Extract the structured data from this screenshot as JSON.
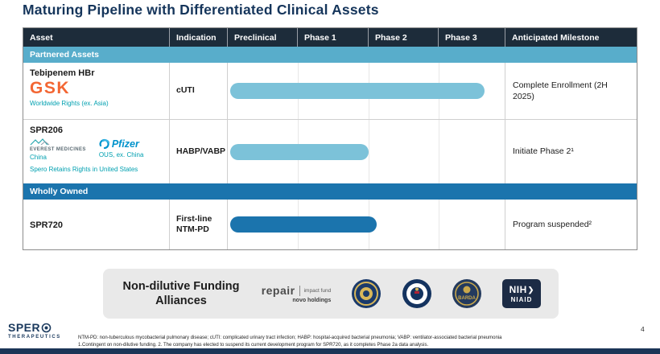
{
  "slide": {
    "title": "Maturing Pipeline with Differentiated Clinical Assets",
    "page_number": "4"
  },
  "colors": {
    "title_navy": "#15355B",
    "header_bg": "#1D2C3A",
    "partnered_band": "#58ADCB",
    "wholly_band": "#1B74AD",
    "bar_partnered": "#7CC2D9",
    "bar_wholly": "#1B74AD",
    "teal_text": "#00A0B0",
    "gsk_orange": "#F36633",
    "pfizer_blue": "#0093CC"
  },
  "table": {
    "headers": [
      "Asset",
      "Indication",
      "Preclinical",
      "Phase 1",
      "Phase 2",
      "Phase 3",
      "Anticipated Milestone"
    ],
    "sections": {
      "partnered": "Partnered Assets",
      "wholly": "Wholly Owned"
    },
    "rows": [
      {
        "asset": "Tebipenem HBr",
        "partner": "GSK",
        "rights": "Worldwide Rights (ex. Asia)",
        "indication": "cUTI",
        "bar": {
          "from": "Preclinical",
          "to": "Phase 3",
          "width_pct": 92,
          "color": "#7CC2D9"
        },
        "milestone": "Complete Enrollment (2H 2025)"
      },
      {
        "asset": "SPR206",
        "partner_1": {
          "name": "EVEREST MEDICINES",
          "territory": "China"
        },
        "partner_2": {
          "name": "Pfizer",
          "territory": "OUS, ex. China"
        },
        "rights": "Spero Retains Rights in United States",
        "indication": "HABP/VABP",
        "bar": {
          "from": "Preclinical",
          "to": "Phase 1",
          "width_pct": 50,
          "color": "#7CC2D9"
        },
        "milestone": "Initiate Phase 2¹"
      },
      {
        "asset": "SPR720",
        "indication": "First-line NTM-PD",
        "bar": {
          "from": "Preclinical",
          "to": "Phase 2",
          "width_pct": 53,
          "color": "#1B74AD"
        },
        "milestone": "Program suspended²"
      }
    ]
  },
  "funding": {
    "title": "Non-dilutive Funding Alliances",
    "repair": {
      "name": "repair",
      "tagline": "impact fund",
      "owner": "novo holdings"
    },
    "seals": [
      "US government agency seal",
      "US government agency seal",
      "BARDA seal"
    ],
    "barda": "BARDA",
    "nih": {
      "abbr": "NIH",
      "institute": "NIAID"
    }
  },
  "footer": {
    "brand": {
      "name_letters": "SPER",
      "name": "SPERO",
      "sub": "THERAPEUTICS"
    },
    "footnote_line1": "NTM-PD: non-tuberculous mycobacterial pulmonary disease; cUTI: complicated urinary tract infection; HABP: hospital-acquired bacterial pneumonia; VABP: ventilator-associated bacterial pneumonia",
    "footnote_line2": "1.Contingent on non-dilutive funding. 2. The company has elected to suspend its current development program for SPR720, as it completes Phase 2a data analysis."
  }
}
